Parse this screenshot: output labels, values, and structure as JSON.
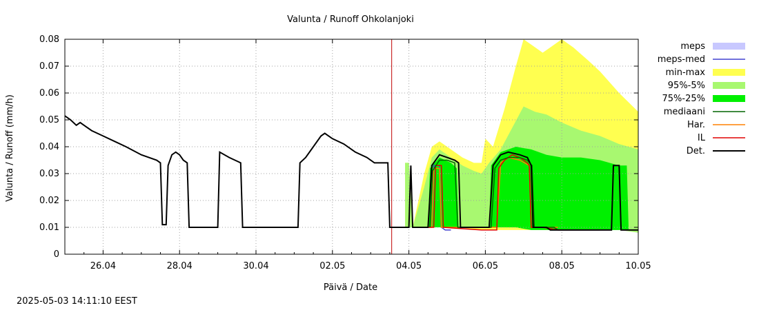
{
  "title": "Valunta / Runoff  Ohkolanjoki",
  "timestamp": "2025-05-03 14:11:10 EEST",
  "chart_data": {
    "type": "line",
    "title": "Valunta / Runoff  Ohkolanjoki",
    "xlabel": "Päivä / Date",
    "ylabel": "Valunta / Runoff (mm/h)",
    "ylim": [
      0,
      0.08
    ],
    "yticks": [
      0,
      0.01,
      0.02,
      0.03,
      0.04,
      0.05,
      0.06,
      0.07,
      0.08
    ],
    "ytick_labels": [
      "0",
      "0.01",
      "0.02",
      "0.03",
      "0.04",
      "0.05",
      "0.06",
      "0.07",
      "0.08"
    ],
    "xlim_days": [
      25.0,
      40.0
    ],
    "xticks": [
      {
        "d": 26,
        "label": "26.04"
      },
      {
        "d": 28,
        "label": "28.04"
      },
      {
        "d": 30,
        "label": "30.04"
      },
      {
        "d": 32,
        "label": "02.05"
      },
      {
        "d": 34,
        "label": "04.05"
      },
      {
        "d": 36,
        "label": "06.05"
      },
      {
        "d": 38,
        "label": "08.05"
      },
      {
        "d": 40,
        "label": "10.05"
      }
    ],
    "grid": true,
    "now_marker_day": 33.55,
    "colors": {
      "meps": "#c8c8ff",
      "meps_med": "#4040d0",
      "minmax": "#ffff50",
      "p95_5": "#a8f870",
      "p75_25": "#00f000",
      "mediaani": "#006400",
      "har": "#ff8000",
      "il": "#e00000",
      "det": "#000000",
      "now_line": "#c00000"
    },
    "legend": [
      {
        "key": "meps",
        "label": "meps",
        "kind": "box",
        "color": "#c8c8ff"
      },
      {
        "key": "meps_med",
        "label": "meps-med",
        "kind": "line",
        "color": "#4040d0"
      },
      {
        "key": "minmax",
        "label": "min-max",
        "kind": "box",
        "color": "#ffff50"
      },
      {
        "key": "p95_5",
        "label": "95%-5%",
        "kind": "box",
        "color": "#a8f870"
      },
      {
        "key": "p75_25",
        "label": "75%-25%",
        "kind": "box",
        "color": "#00f000"
      },
      {
        "key": "mediaani",
        "label": "mediaani",
        "kind": "line",
        "color": "#006400"
      },
      {
        "key": "har",
        "label": "Har.",
        "kind": "line",
        "color": "#ff8000"
      },
      {
        "key": "il",
        "label": "IL",
        "kind": "line",
        "color": "#e00000"
      },
      {
        "key": "det",
        "label": "Det.",
        "kind": "line",
        "color": "#000000"
      }
    ],
    "bands": {
      "minmax": [
        [
          33.9,
          0.01,
          0.034
        ],
        [
          34.0,
          0.01,
          0.034
        ],
        [
          34.1,
          0.01,
          0.01
        ],
        [
          34.4,
          0.01,
          0.03
        ],
        [
          34.6,
          0.01,
          0.04
        ],
        [
          34.8,
          0.01,
          0.042
        ],
        [
          35.0,
          0.01,
          0.04
        ],
        [
          35.4,
          0.01,
          0.036
        ],
        [
          35.7,
          0.009,
          0.034
        ],
        [
          35.9,
          0.009,
          0.034
        ],
        [
          36.0,
          0.009,
          0.043
        ],
        [
          36.2,
          0.009,
          0.04
        ],
        [
          36.5,
          0.009,
          0.054
        ],
        [
          36.8,
          0.009,
          0.07
        ],
        [
          37.0,
          0.009,
          0.08
        ],
        [
          37.2,
          0.009,
          0.078
        ],
        [
          37.5,
          0.009,
          0.075
        ],
        [
          37.7,
          0.009,
          0.077
        ],
        [
          38.0,
          0.009,
          0.08
        ],
        [
          38.3,
          0.009,
          0.077
        ],
        [
          38.7,
          0.009,
          0.072
        ],
        [
          39.0,
          0.009,
          0.068
        ],
        [
          39.5,
          0.009,
          0.06
        ],
        [
          40.0,
          0.009,
          0.053
        ]
      ],
      "p95_5": [
        [
          33.9,
          0.01,
          0.034
        ],
        [
          34.0,
          0.01,
          0.034
        ],
        [
          34.1,
          0.01,
          0.01
        ],
        [
          34.4,
          0.01,
          0.025
        ],
        [
          34.6,
          0.01,
          0.036
        ],
        [
          34.8,
          0.01,
          0.039
        ],
        [
          35.0,
          0.01,
          0.037
        ],
        [
          35.4,
          0.01,
          0.033
        ],
        [
          35.7,
          0.01,
          0.031
        ],
        [
          35.9,
          0.01,
          0.03
        ],
        [
          36.1,
          0.01,
          0.034
        ],
        [
          36.4,
          0.01,
          0.039
        ],
        [
          36.7,
          0.01,
          0.047
        ],
        [
          37.0,
          0.01,
          0.055
        ],
        [
          37.3,
          0.01,
          0.053
        ],
        [
          37.6,
          0.01,
          0.052
        ],
        [
          38.0,
          0.01,
          0.049
        ],
        [
          38.5,
          0.009,
          0.046
        ],
        [
          39.0,
          0.009,
          0.044
        ],
        [
          39.5,
          0.009,
          0.041
        ],
        [
          40.0,
          0.008,
          0.039
        ]
      ],
      "p75_25": [
        [
          34.5,
          0.01,
          0.01
        ],
        [
          34.55,
          0.01,
          0.032
        ],
        [
          34.8,
          0.01,
          0.036
        ],
        [
          35.1,
          0.01,
          0.034
        ],
        [
          35.25,
          0.01,
          0.032
        ],
        [
          35.3,
          0.01,
          0.01
        ],
        [
          36.1,
          0.01,
          0.01
        ],
        [
          36.15,
          0.01,
          0.033
        ],
        [
          36.4,
          0.01,
          0.038
        ],
        [
          36.8,
          0.01,
          0.04
        ],
        [
          37.2,
          0.009,
          0.039
        ],
        [
          37.6,
          0.009,
          0.037
        ],
        [
          38.0,
          0.009,
          0.036
        ],
        [
          38.5,
          0.009,
          0.036
        ],
        [
          39.0,
          0.009,
          0.035
        ],
        [
          39.5,
          0.009,
          0.033
        ],
        [
          39.7,
          0.009,
          0.033
        ],
        [
          39.75,
          0.009,
          0.009
        ],
        [
          40.0,
          0.009,
          0.009
        ]
      ]
    },
    "series": [
      {
        "key": "det",
        "name": "Det.",
        "points": [
          [
            25.0,
            0.0515
          ],
          [
            25.15,
            0.05
          ],
          [
            25.3,
            0.048
          ],
          [
            25.4,
            0.049
          ],
          [
            25.5,
            0.048
          ],
          [
            25.7,
            0.046
          ],
          [
            26.0,
            0.044
          ],
          [
            26.3,
            0.042
          ],
          [
            26.6,
            0.04
          ],
          [
            27.0,
            0.037
          ],
          [
            27.4,
            0.035
          ],
          [
            27.5,
            0.034
          ],
          [
            27.55,
            0.011
          ],
          [
            27.65,
            0.011
          ],
          [
            27.7,
            0.033
          ],
          [
            27.8,
            0.037
          ],
          [
            27.9,
            0.038
          ],
          [
            28.0,
            0.037
          ],
          [
            28.1,
            0.035
          ],
          [
            28.2,
            0.034
          ],
          [
            28.25,
            0.01
          ],
          [
            29.0,
            0.01
          ],
          [
            29.05,
            0.038
          ],
          [
            29.3,
            0.036
          ],
          [
            29.6,
            0.034
          ],
          [
            29.65,
            0.01
          ],
          [
            31.1,
            0.01
          ],
          [
            31.15,
            0.034
          ],
          [
            31.3,
            0.036
          ],
          [
            31.5,
            0.04
          ],
          [
            31.7,
            0.044
          ],
          [
            31.8,
            0.045
          ],
          [
            32.0,
            0.043
          ],
          [
            32.3,
            0.041
          ],
          [
            32.6,
            0.038
          ],
          [
            32.9,
            0.036
          ],
          [
            33.1,
            0.034
          ],
          [
            33.45,
            0.034
          ],
          [
            33.5,
            0.01
          ],
          [
            34.0,
            0.01
          ],
          [
            34.05,
            0.033
          ],
          [
            34.1,
            0.01
          ],
          [
            34.5,
            0.01
          ],
          [
            34.6,
            0.033
          ],
          [
            34.8,
            0.037
          ],
          [
            35.0,
            0.036
          ],
          [
            35.2,
            0.035
          ],
          [
            35.3,
            0.034
          ],
          [
            35.35,
            0.01
          ],
          [
            36.1,
            0.01
          ],
          [
            36.2,
            0.033
          ],
          [
            36.4,
            0.037
          ],
          [
            36.6,
            0.038
          ],
          [
            36.9,
            0.037
          ],
          [
            37.1,
            0.036
          ],
          [
            37.2,
            0.033
          ],
          [
            37.25,
            0.01
          ],
          [
            37.6,
            0.01
          ],
          [
            37.7,
            0.009
          ],
          [
            39.3,
            0.009
          ],
          [
            39.35,
            0.033
          ],
          [
            39.5,
            0.033
          ],
          [
            39.55,
            0.009
          ],
          [
            40.0,
            0.009
          ]
        ]
      },
      {
        "key": "mediaani",
        "name": "mediaani",
        "points": [
          [
            34.55,
            0.01
          ],
          [
            34.62,
            0.031
          ],
          [
            34.8,
            0.035
          ],
          [
            35.0,
            0.035
          ],
          [
            35.2,
            0.034
          ],
          [
            35.28,
            0.01
          ],
          [
            36.15,
            0.01
          ],
          [
            36.25,
            0.032
          ],
          [
            36.4,
            0.035
          ],
          [
            36.6,
            0.036
          ],
          [
            36.9,
            0.036
          ],
          [
            37.1,
            0.035
          ],
          [
            37.22,
            0.033
          ],
          [
            37.28,
            0.01
          ],
          [
            37.8,
            0.01
          ],
          [
            37.9,
            0.009
          ],
          [
            39.0,
            0.009
          ]
        ]
      },
      {
        "key": "il",
        "name": "IL",
        "points": [
          [
            34.5,
            0.01
          ],
          [
            34.65,
            0.01
          ],
          [
            34.7,
            0.033
          ],
          [
            34.85,
            0.033
          ],
          [
            34.9,
            0.01
          ],
          [
            35.9,
            0.009
          ],
          [
            36.3,
            0.009
          ],
          [
            36.35,
            0.032
          ],
          [
            36.5,
            0.035
          ],
          [
            36.7,
            0.037
          ],
          [
            36.9,
            0.036
          ],
          [
            37.1,
            0.034
          ],
          [
            37.15,
            0.033
          ],
          [
            37.2,
            0.01
          ],
          [
            37.5,
            0.01
          ],
          [
            37.9,
            0.009
          ]
        ]
      },
      {
        "key": "har",
        "name": "Har.",
        "points": [
          [
            34.5,
            0.01
          ],
          [
            34.6,
            0.01
          ],
          [
            34.65,
            0.032
          ],
          [
            34.8,
            0.032
          ],
          [
            34.85,
            0.01
          ],
          [
            36.3,
            0.01
          ],
          [
            36.4,
            0.034
          ],
          [
            36.6,
            0.036
          ],
          [
            36.9,
            0.035
          ],
          [
            37.15,
            0.033
          ],
          [
            37.2,
            0.01
          ],
          [
            37.9,
            0.01
          ]
        ]
      },
      {
        "key": "meps_med",
        "name": "meps-med",
        "points": [
          [
            34.6,
            0.01
          ],
          [
            34.65,
            0.033
          ],
          [
            34.8,
            0.033
          ],
          [
            34.85,
            0.01
          ],
          [
            34.95,
            0.009
          ],
          [
            35.1,
            0.009
          ]
        ]
      }
    ]
  }
}
